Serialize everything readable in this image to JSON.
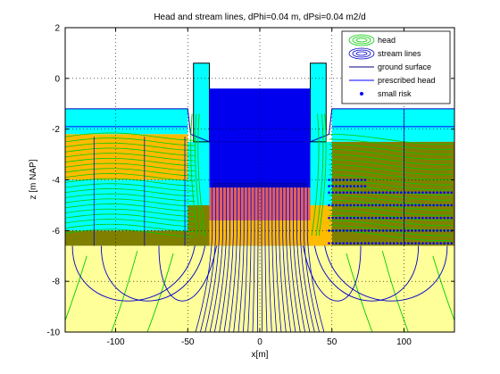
{
  "chart_data": {
    "type": "contour",
    "title": "Head and stream lines, dPhi=0.04 m, dPsi=0.04 m2/d",
    "xlabel": "x[m]",
    "ylabel": "z [m NAP]",
    "xlim": [
      -135,
      135
    ],
    "ylim": [
      -10,
      2
    ],
    "xticks": [
      "-100",
      "-50",
      "0",
      "50",
      "100"
    ],
    "xtick_values": [
      -100,
      -50,
      0,
      50,
      100
    ],
    "yticks": [
      "2",
      "0",
      "-2",
      "-4",
      "-6",
      "-8",
      "-10"
    ],
    "ytick_values": [
      2,
      0,
      -2,
      -4,
      -6,
      -8,
      -10
    ],
    "grid": true,
    "legend_position": "top-right",
    "legend": [
      {
        "label": "head",
        "color": "#00cc00",
        "marker": "ellipses"
      },
      {
        "label": "stream lines",
        "color": "#0000cc",
        "marker": "ellipses"
      },
      {
        "label": "ground surface",
        "color": "#000080",
        "marker": "line"
      },
      {
        "label": "prescribed head",
        "color": "#0000ff",
        "marker": "line"
      },
      {
        "label": "small risk",
        "color": "#0000ff",
        "marker": "dot"
      }
    ],
    "colors": {
      "sand": "#ffff99",
      "water": "#00ffff",
      "peat": "#ffbb00",
      "clay": "#808000",
      "building": "#0000ee",
      "building_dark": "#0000bb",
      "head_line": "#00cc00",
      "stream_line": "#0000cc",
      "risk_dot": "#0000ff"
    },
    "layers": [
      {
        "material": "water",
        "x": [
          -135,
          -50
        ],
        "z": [
          -2.2,
          -1.2
        ]
      },
      {
        "material": "peat",
        "x": [
          -135,
          -50
        ],
        "z": [
          -4.0,
          -2.2
        ]
      },
      {
        "material": "water",
        "x": [
          -135,
          -50
        ],
        "z": [
          -6.0,
          -4.0
        ]
      },
      {
        "material": "clay",
        "x": [
          -135,
          -50
        ],
        "z": [
          -6.6,
          -6.0
        ]
      },
      {
        "material": "water",
        "x": [
          50,
          135
        ],
        "z": [
          -2.5,
          -1.2
        ]
      },
      {
        "material": "clay",
        "x": [
          50,
          135
        ],
        "z": [
          -6.6,
          -2.5
        ]
      },
      {
        "material": "sand",
        "x": [
          -135,
          135
        ],
        "z": [
          -10,
          -6.6
        ]
      }
    ],
    "building": {
      "x": [
        -35,
        35
      ],
      "z": [
        -4.3,
        -0.4
      ]
    },
    "sheet_piles": [
      {
        "x": [
          -46,
          -35
        ],
        "z": [
          -2.5,
          0.6
        ]
      },
      {
        "x": [
          35,
          46
        ],
        "z": [
          -2.5,
          0.6
        ]
      }
    ],
    "ground_surface": [
      [
        -135,
        -1.2
      ],
      [
        -50,
        -1.2
      ],
      [
        -48,
        -2.2
      ],
      [
        -35,
        -2.5
      ],
      [
        35,
        -2.5
      ],
      [
        48,
        -2.2
      ],
      [
        50,
        -1.2
      ],
      [
        135,
        -1.2
      ]
    ],
    "small_risk_rows_z": [
      -4.0,
      -4.25,
      -4.5,
      -5.0,
      -5.5,
      -6.0,
      -6.5
    ],
    "small_risk_x_range": [
      48,
      133
    ]
  }
}
